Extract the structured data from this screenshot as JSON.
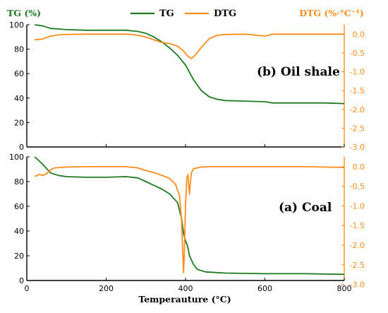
{
  "colors": {
    "tg": "#1f7a1f",
    "dtg": "#ff8c1a",
    "axis": "#000000"
  },
  "header": {
    "left_axis_title": "TG (%)",
    "right_axis_title": "DTG (%·°C⁻¹)",
    "legend": [
      {
        "label": "TG",
        "color": "#1f7a1f"
      },
      {
        "label": "DTG",
        "color": "#ff8c1a"
      }
    ]
  },
  "xlabel": "Temperauture (°C)",
  "chart_data": [
    {
      "type": "line",
      "panel_label": "(b) Oil shale",
      "xlim": [
        0,
        800
      ],
      "x_ticks": [
        0,
        200,
        400,
        600,
        800
      ],
      "ylim_left": [
        0,
        100
      ],
      "left_ticks": [
        0,
        20,
        40,
        60,
        80,
        100
      ],
      "ylim_right": [
        -3.0,
        0.25
      ],
      "right_ticks": [
        0.0,
        -0.5,
        -1.0,
        -1.5,
        -2.0,
        -2.5,
        -3.0
      ],
      "series": [
        {
          "name": "TG",
          "axis": "left",
          "points": [
            [
              20,
              100
            ],
            [
              40,
              99
            ],
            [
              60,
              97
            ],
            [
              100,
              96
            ],
            [
              150,
              95.5
            ],
            [
              200,
              95.5
            ],
            [
              250,
              95.5
            ],
            [
              280,
              94.5
            ],
            [
              300,
              93
            ],
            [
              320,
              90
            ],
            [
              340,
              86
            ],
            [
              360,
              81
            ],
            [
              380,
              75
            ],
            [
              400,
              67
            ],
            [
              420,
              55
            ],
            [
              440,
              46
            ],
            [
              460,
              41
            ],
            [
              480,
              39
            ],
            [
              500,
              38
            ],
            [
              550,
              37.5
            ],
            [
              600,
              37
            ],
            [
              620,
              36
            ],
            [
              650,
              36
            ],
            [
              700,
              36
            ],
            [
              750,
              36
            ],
            [
              800,
              35.5
            ]
          ]
        },
        {
          "name": "DTG",
          "axis": "right",
          "points": [
            [
              20,
              -0.15
            ],
            [
              40,
              -0.13
            ],
            [
              60,
              -0.05
            ],
            [
              80,
              -0.02
            ],
            [
              100,
              -0.01
            ],
            [
              150,
              0.0
            ],
            [
              200,
              0.0
            ],
            [
              250,
              0.0
            ],
            [
              280,
              -0.03
            ],
            [
              300,
              -0.08
            ],
            [
              320,
              -0.15
            ],
            [
              340,
              -0.22
            ],
            [
              360,
              -0.25
            ],
            [
              380,
              -0.32
            ],
            [
              395,
              -0.45
            ],
            [
              405,
              -0.58
            ],
            [
              415,
              -0.65
            ],
            [
              425,
              -0.55
            ],
            [
              440,
              -0.35
            ],
            [
              460,
              -0.12
            ],
            [
              480,
              -0.03
            ],
            [
              500,
              -0.01
            ],
            [
              550,
              0.0
            ],
            [
              600,
              -0.05
            ],
            [
              620,
              0.0
            ],
            [
              700,
              0.0
            ],
            [
              800,
              0.0
            ]
          ]
        }
      ]
    },
    {
      "type": "line",
      "panel_label": "(a) Coal",
      "xlim": [
        0,
        800
      ],
      "x_ticks": [
        0,
        200,
        400,
        600,
        800
      ],
      "ylim_left": [
        0,
        100
      ],
      "left_ticks": [
        0,
        20,
        40,
        60,
        80,
        100
      ],
      "ylim_right": [
        -2.9,
        0.25
      ],
      "right_ticks": [
        0.0,
        -0.5,
        -1.0,
        -1.5,
        -2.0,
        -2.5,
        -3.0
      ],
      "series": [
        {
          "name": "TG",
          "axis": "left",
          "points": [
            [
              20,
              100
            ],
            [
              40,
              94
            ],
            [
              60,
              87
            ],
            [
              80,
              85
            ],
            [
              100,
              84
            ],
            [
              150,
              83.5
            ],
            [
              200,
              83.5
            ],
            [
              250,
              84
            ],
            [
              280,
              83
            ],
            [
              300,
              80
            ],
            [
              320,
              77
            ],
            [
              340,
              74
            ],
            [
              360,
              70
            ],
            [
              380,
              63
            ],
            [
              390,
              50
            ],
            [
              395,
              38
            ],
            [
              400,
              32
            ],
            [
              405,
              28
            ],
            [
              410,
              20
            ],
            [
              420,
              13
            ],
            [
              430,
              9
            ],
            [
              450,
              7
            ],
            [
              500,
              6
            ],
            [
              600,
              5.5
            ],
            [
              700,
              5.5
            ],
            [
              800,
              5
            ]
          ]
        },
        {
          "name": "DTG",
          "axis": "right",
          "points": [
            [
              20,
              -0.25
            ],
            [
              30,
              -0.2
            ],
            [
              40,
              -0.22
            ],
            [
              50,
              -0.18
            ],
            [
              60,
              -0.08
            ],
            [
              70,
              -0.03
            ],
            [
              100,
              -0.01
            ],
            [
              150,
              0.0
            ],
            [
              200,
              0.0
            ],
            [
              250,
              0.0
            ],
            [
              280,
              -0.03
            ],
            [
              300,
              -0.1
            ],
            [
              320,
              -0.15
            ],
            [
              340,
              -0.22
            ],
            [
              360,
              -0.3
            ],
            [
              375,
              -0.45
            ],
            [
              385,
              -0.75
            ],
            [
              390,
              -1.4
            ],
            [
              393,
              -2.2
            ],
            [
              395,
              -2.7
            ],
            [
              397,
              -2.2
            ],
            [
              400,
              -1.0
            ],
            [
              403,
              -0.3
            ],
            [
              406,
              -0.2
            ],
            [
              408,
              -0.5
            ],
            [
              410,
              -0.7
            ],
            [
              412,
              -0.4
            ],
            [
              415,
              -0.15
            ],
            [
              420,
              -0.05
            ],
            [
              440,
              -0.01
            ],
            [
              460,
              0.0
            ],
            [
              500,
              0.0
            ],
            [
              600,
              0.0
            ],
            [
              700,
              0.0
            ],
            [
              800,
              -0.02
            ]
          ]
        }
      ]
    }
  ]
}
